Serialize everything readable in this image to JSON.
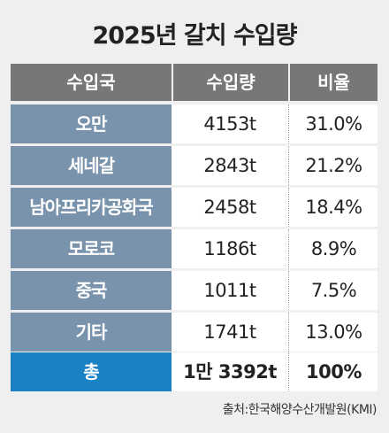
{
  "chart_data": {
    "type": "table",
    "title": "2025년 갈치 수입량",
    "columns": [
      "수입국",
      "수입량",
      "비율"
    ],
    "rows": [
      {
        "country": "오만",
        "amount": "4153t",
        "ratio": "31.0%"
      },
      {
        "country": "세네갈",
        "amount": "2843t",
        "ratio": "21.2%"
      },
      {
        "country": "남아프리카공화국",
        "amount": "2458t",
        "ratio": "18.4%"
      },
      {
        "country": "모로코",
        "amount": "1186t",
        "ratio": "8.9%"
      },
      {
        "country": "중국",
        "amount": "1011t",
        "ratio": "7.5%"
      },
      {
        "country": "기타",
        "amount": "1741t",
        "ratio": "13.0%"
      }
    ],
    "total": {
      "label": "총",
      "amount": "1만 3392t",
      "ratio": "100%"
    },
    "source": "출처:한국해양수산개발원(KMI)"
  },
  "colors": {
    "background": "#efefef",
    "header": "#777777",
    "country_cell": "#7a93ac",
    "total_cell": "#1a82c4"
  }
}
